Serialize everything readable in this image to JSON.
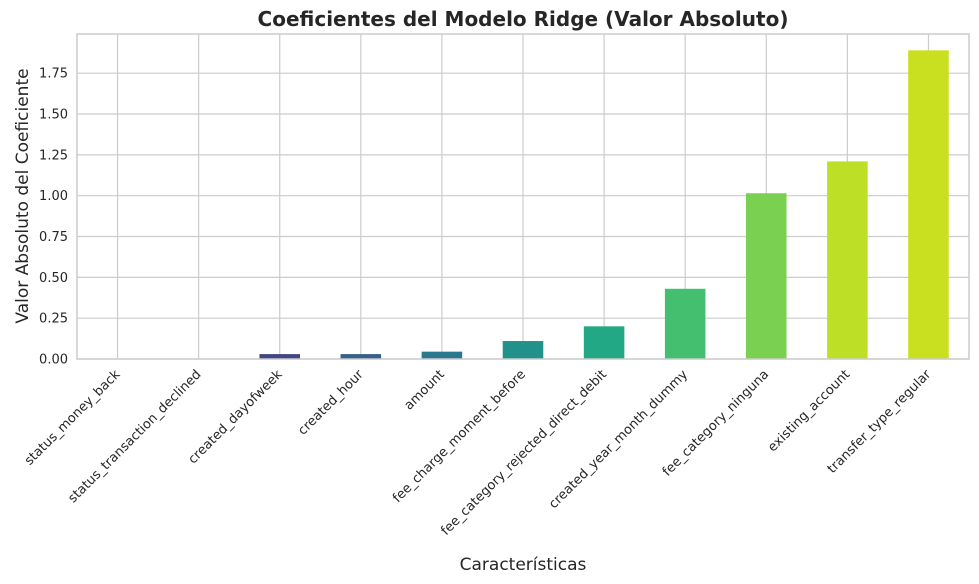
{
  "chart_data": {
    "type": "bar",
    "title": "Coeficientes del Modelo Ridge (Valor Absoluto)",
    "xlabel": "Características",
    "ylabel": "Valor Absoluto del Coeficiente",
    "categories": [
      "status_money_back",
      "status_transaction_declined",
      "created_dayofweek",
      "created_hour",
      "amount",
      "fee_charge_moment_before",
      "fee_category_rejected_direct_debit",
      "created_year_month_dummy",
      "fee_category_ninguna",
      "existing_account",
      "transfer_type_regular"
    ],
    "values": [
      0.0,
      0.0,
      0.03,
      0.03,
      0.045,
      0.11,
      0.2,
      0.43,
      1.015,
      1.21,
      1.89
    ],
    "colors": [
      "#440154",
      "#482475",
      "#414487",
      "#355f8d",
      "#2a788e",
      "#21918c",
      "#22a884",
      "#44bf70",
      "#7ad151",
      "#bddf26",
      "#c9e020"
    ],
    "ylim": [
      0,
      1.99
    ],
    "yticks": [
      0.0,
      0.25,
      0.5,
      0.75,
      1.0,
      1.25,
      1.5,
      1.75
    ],
    "ytick_labels": [
      "0.00",
      "0.25",
      "0.50",
      "0.75",
      "1.00",
      "1.25",
      "1.50",
      "1.75"
    ],
    "grid": true,
    "legend": "none"
  }
}
